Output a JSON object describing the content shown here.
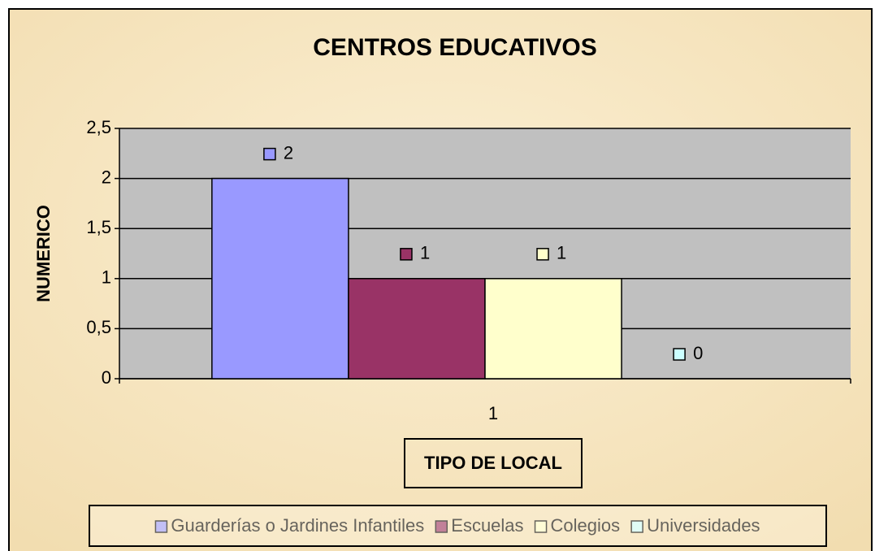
{
  "chart_data": {
    "type": "bar",
    "title": "CENTROS EDUCATIVOS",
    "y_label": "NUMERICO",
    "x_label": "TIPO DE LOCAL",
    "categories": [
      "1"
    ],
    "series": [
      {
        "name": "Guarderías o Jardines Infantiles",
        "color": "#9999ff",
        "values": [
          2
        ]
      },
      {
        "name": "Escuelas",
        "color": "#993366",
        "values": [
          1
        ]
      },
      {
        "name": "Colegios",
        "color": "#ffffcc",
        "values": [
          1
        ]
      },
      {
        "name": "Universidades",
        "color": "#ccffff",
        "values": [
          0
        ]
      }
    ],
    "ylim": [
      0,
      2.5
    ],
    "yticks": [
      0,
      {
        "value": 0.5,
        "label": "0,5"
      },
      1,
      {
        "value": 1.5,
        "label": "1,5"
      },
      2,
      {
        "value": 2.5,
        "label": "2,5"
      }
    ],
    "grid": true,
    "legend": "bottom"
  }
}
